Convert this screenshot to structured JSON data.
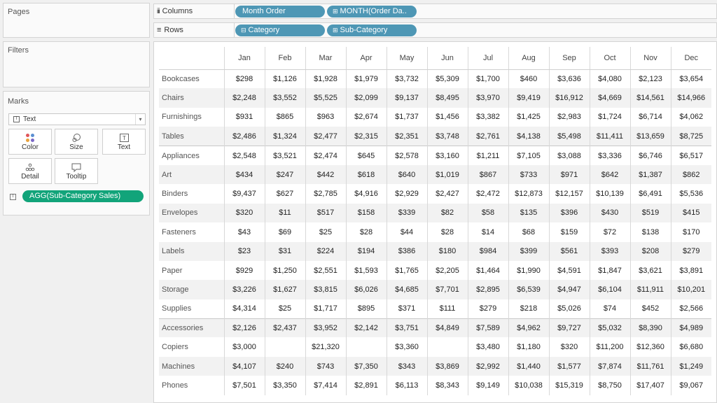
{
  "panels": {
    "pages": "Pages",
    "filters": "Filters",
    "marks": "Marks"
  },
  "marks": {
    "type": "Text",
    "buttons": {
      "color": "Color",
      "size": "Size",
      "text": "Text",
      "detail": "Detail",
      "tooltip": "Tooltip"
    },
    "field": "AGG(Sub-Category Sales)"
  },
  "shelves": {
    "columns_label": "Columns",
    "rows_label": "Rows",
    "columns_pills": [
      "Month Order",
      "MONTH(Order Da.."
    ],
    "rows_pills": [
      "Category",
      "Sub-Category"
    ]
  },
  "colors": {
    "pill_blue": "#4e97b5",
    "pill_green": "#12a47a"
  },
  "table": {
    "months": [
      "Jan",
      "Feb",
      "Mar",
      "Apr",
      "May",
      "Jun",
      "Jul",
      "Aug",
      "Sep",
      "Oct",
      "Nov",
      "Dec"
    ],
    "rows": [
      {
        "name": "Bookcases",
        "values": [
          "$298",
          "$1,126",
          "$1,928",
          "$1,979",
          "$3,732",
          "$5,309",
          "$1,700",
          "$460",
          "$3,636",
          "$4,080",
          "$2,123",
          "$3,654"
        ]
      },
      {
        "name": "Chairs",
        "values": [
          "$2,248",
          "$3,552",
          "$5,525",
          "$2,099",
          "$9,137",
          "$8,495",
          "$3,970",
          "$9,419",
          "$16,912",
          "$4,669",
          "$14,561",
          "$14,966"
        ]
      },
      {
        "name": "Furnishings",
        "values": [
          "$931",
          "$865",
          "$963",
          "$2,674",
          "$1,737",
          "$1,456",
          "$3,382",
          "$1,425",
          "$2,983",
          "$1,724",
          "$6,714",
          "$4,062"
        ]
      },
      {
        "name": "Tables",
        "values": [
          "$2,486",
          "$1,324",
          "$2,477",
          "$2,315",
          "$2,351",
          "$3,748",
          "$2,761",
          "$4,138",
          "$5,498",
          "$11,411",
          "$13,659",
          "$8,725"
        ]
      },
      {
        "name": "Appliances",
        "values": [
          "$2,548",
          "$3,521",
          "$2,474",
          "$645",
          "$2,578",
          "$3,160",
          "$1,211",
          "$7,105",
          "$3,088",
          "$3,336",
          "$6,746",
          "$6,517"
        ]
      },
      {
        "name": "Art",
        "values": [
          "$434",
          "$247",
          "$442",
          "$618",
          "$640",
          "$1,019",
          "$867",
          "$733",
          "$971",
          "$642",
          "$1,387",
          "$862"
        ]
      },
      {
        "name": "Binders",
        "values": [
          "$9,437",
          "$627",
          "$2,785",
          "$4,916",
          "$2,929",
          "$2,427",
          "$2,472",
          "$12,873",
          "$12,157",
          "$10,139",
          "$6,491",
          "$5,536"
        ]
      },
      {
        "name": "Envelopes",
        "values": [
          "$320",
          "$11",
          "$517",
          "$158",
          "$339",
          "$82",
          "$58",
          "$135",
          "$396",
          "$430",
          "$519",
          "$415"
        ]
      },
      {
        "name": "Fasteners",
        "values": [
          "$43",
          "$69",
          "$25",
          "$28",
          "$44",
          "$28",
          "$14",
          "$68",
          "$159",
          "$72",
          "$138",
          "$170"
        ]
      },
      {
        "name": "Labels",
        "values": [
          "$23",
          "$31",
          "$224",
          "$194",
          "$386",
          "$180",
          "$984",
          "$399",
          "$561",
          "$393",
          "$208",
          "$279"
        ]
      },
      {
        "name": "Paper",
        "values": [
          "$929",
          "$1,250",
          "$2,551",
          "$1,593",
          "$1,765",
          "$2,205",
          "$1,464",
          "$1,990",
          "$4,591",
          "$1,847",
          "$3,621",
          "$3,891"
        ]
      },
      {
        "name": "Storage",
        "values": [
          "$3,226",
          "$1,627",
          "$3,815",
          "$6,026",
          "$4,685",
          "$7,701",
          "$2,895",
          "$6,539",
          "$4,947",
          "$6,104",
          "$11,911",
          "$10,201"
        ]
      },
      {
        "name": "Supplies",
        "values": [
          "$4,314",
          "$25",
          "$1,717",
          "$895",
          "$371",
          "$111",
          "$279",
          "$218",
          "$5,026",
          "$74",
          "$452",
          "$2,566"
        ]
      },
      {
        "name": "Accessories",
        "values": [
          "$2,126",
          "$2,437",
          "$3,952",
          "$2,142",
          "$3,751",
          "$4,849",
          "$7,589",
          "$4,962",
          "$9,727",
          "$5,032",
          "$8,390",
          "$4,989"
        ]
      },
      {
        "name": "Copiers",
        "values": [
          "$3,000",
          "",
          "$21,320",
          "",
          "$3,360",
          "",
          "$3,480",
          "$1,180",
          "$320",
          "$11,200",
          "$12,360",
          "$6,680"
        ]
      },
      {
        "name": "Machines",
        "values": [
          "$4,107",
          "$240",
          "$743",
          "$7,350",
          "$343",
          "$3,869",
          "$2,992",
          "$1,440",
          "$1,577",
          "$7,874",
          "$11,761",
          "$1,249"
        ]
      },
      {
        "name": "Phones",
        "values": [
          "$7,501",
          "$3,350",
          "$7,414",
          "$2,891",
          "$6,113",
          "$8,343",
          "$9,149",
          "$10,038",
          "$15,319",
          "$8,750",
          "$17,407",
          "$9,067"
        ]
      }
    ]
  }
}
